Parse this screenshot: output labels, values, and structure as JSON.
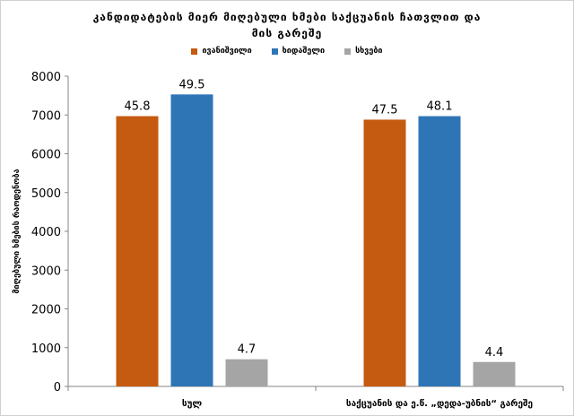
{
  "chart_data": {
    "type": "bar",
    "title_line1": "კანდიდატების მიერ მიღებული ხმები საქცუანის ჩათვლით და",
    "title_line2": "მის გარეშე",
    "ylabel": "მიღებული ხმების რაოდენობა",
    "categories": [
      "სულ",
      "საქცუანის და ე.წ. „დედა-უბნის“ გარეშე"
    ],
    "ylim": [
      0,
      8000
    ],
    "yticks": [
      0,
      1000,
      2000,
      3000,
      4000,
      5000,
      6000,
      7000,
      8000
    ],
    "legend_position": "top",
    "grid": false,
    "series": [
      {
        "name": "ივანიშვილი",
        "color": "#c55a11",
        "values": [
          6970,
          6880
        ],
        "labels": [
          "45.8",
          "47.5"
        ]
      },
      {
        "name": "ხიდაშელი",
        "color": "#2e75b6",
        "values": [
          7530,
          6970
        ],
        "labels": [
          "49.5",
          "48.1"
        ]
      },
      {
        "name": "სხვები",
        "color": "#a5a5a5",
        "values": [
          700,
          630
        ],
        "labels": [
          "4.7",
          "4.4"
        ]
      }
    ]
  }
}
